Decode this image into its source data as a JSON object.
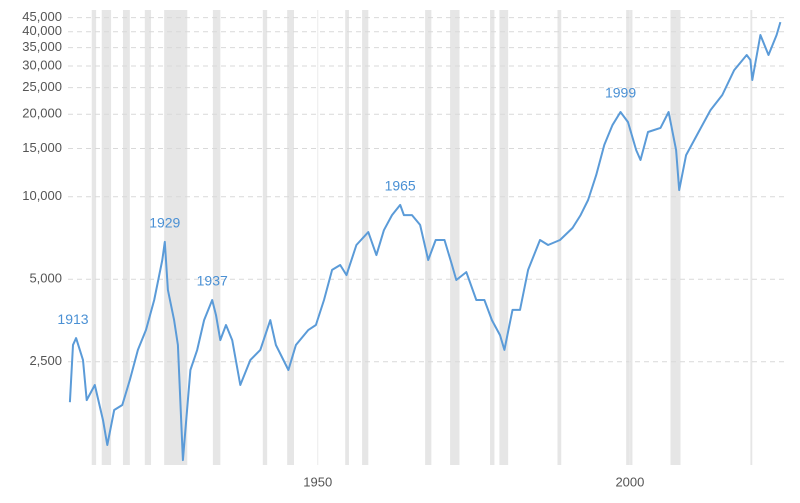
{
  "chart_data": {
    "type": "line",
    "yscale": "log",
    "grid": true,
    "xlim": [
      1910,
      2025
    ],
    "ylim": [
      1050,
      48000
    ],
    "xticks": [
      1950,
      2000
    ],
    "yticks": [
      {
        "value": 2500,
        "label": "2,500"
      },
      {
        "value": 5000,
        "label": "5,000"
      },
      {
        "value": 10000,
        "label": "10,000"
      },
      {
        "value": 15000,
        "label": "15,000"
      },
      {
        "value": 20000,
        "label": "20,000"
      },
      {
        "value": 25000,
        "label": "25,000"
      },
      {
        "value": 30000,
        "label": "30,000"
      },
      {
        "value": 35000,
        "label": "35,000"
      },
      {
        "value": 40000,
        "label": "40,000"
      },
      {
        "value": 45000,
        "label": "45,000"
      }
    ],
    "shaded_color": "#e6e6e6",
    "shaded_ranges": [
      [
        1913.8,
        1914.5
      ],
      [
        1915.4,
        1916.9
      ],
      [
        1918.8,
        1919.9
      ],
      [
        1922.3,
        1923.3
      ],
      [
        1925.4,
        1929.1
      ],
      [
        1933.2,
        1934.4
      ],
      [
        1941.2,
        1941.9
      ],
      [
        1945.1,
        1946.2
      ],
      [
        1954.4,
        1955.0
      ],
      [
        1957.1,
        1958.1
      ],
      [
        1967.2,
        1968.2
      ],
      [
        1971.2,
        1972.7
      ],
      [
        1977.6,
        1978.3
      ],
      [
        1979.1,
        1980.5
      ],
      [
        1988.4,
        1989.0
      ],
      [
        1999.4,
        2000.4
      ],
      [
        2006.5,
        2008.1
      ],
      [
        2019.3,
        2019.6
      ]
    ],
    "series": [
      {
        "color": "#5b9bd8",
        "x": [
          1910.3,
          1910.8,
          1911.3,
          1912.4,
          1913.0,
          1914.3,
          1915.6,
          1916.3,
          1917.4,
          1918.7,
          1919.9,
          1921.2,
          1922.5,
          1923.8,
          1925.1,
          1925.5,
          1926.0,
          1927.0,
          1927.6,
          1928.4,
          1928.8,
          1929.6,
          1930.7,
          1931.8,
          1933.1,
          1933.7,
          1934.4,
          1935.3,
          1936.3,
          1937.6,
          1939.2,
          1940.8,
          1942.4,
          1943.3,
          1945.3,
          1946.5,
          1948.5,
          1949.7,
          1951.0,
          1952.3,
          1953.6,
          1954.6,
          1956.2,
          1958.1,
          1959.4,
          1960.6,
          1961.9,
          1963.2,
          1963.8,
          1965.1,
          1966.4,
          1967.7,
          1968.9,
          1970.3,
          1971.5,
          1972.2,
          1973.8,
          1975.4,
          1976.7,
          1977.9,
          1979.2,
          1979.9,
          1981.2,
          1982.4,
          1983.7,
          1985.6,
          1986.9,
          1988.8,
          1990.8,
          1992.1,
          1993.3,
          1994.6,
          1995.9,
          1997.2,
          1998.5,
          1999.7,
          2001.0,
          2001.7,
          2002.9,
          2004.9,
          2006.2,
          2007.4,
          2007.9,
          2009.0,
          2011.0,
          2012.9,
          2014.8,
          2016.7,
          2018.7,
          2019.3,
          2019.6,
          2020.9,
          2022.2,
          2023.5,
          2024.1
        ],
        "values": [
          1780,
          2880,
          3050,
          2535,
          1811,
          2056,
          1531,
          1242,
          1667,
          1738,
          2143,
          2761,
          3266,
          4198,
          5875,
          6839,
          4571,
          3548,
          2877,
          1094,
          1409,
          2333,
          2761,
          3548,
          4198,
          3698,
          2999,
          3404,
          2999,
          2056,
          2535,
          2761,
          3548,
          2877,
          2333,
          2877,
          3266,
          3404,
          4198,
          5408,
          5636,
          5176,
          6668,
          7430,
          6124,
          7551,
          8570,
          9333,
          8570,
          8570,
          7889,
          5875,
          6950,
          6950,
          5636,
          4966,
          5309,
          4198,
          4198,
          3548,
          3126,
          2761,
          3864,
          3864,
          5408,
          6950,
          6668,
          6950,
          7691,
          8570,
          9727,
          11995,
          15450,
          18240,
          20370,
          18710,
          14790,
          13610,
          17220,
          17820,
          20370,
          14790,
          10570,
          14190,
          17220,
          20700,
          23500,
          28970,
          32890,
          31550,
          26670,
          38900,
          32890,
          38900,
          43350
        ]
      }
    ],
    "annotations": [
      {
        "text": "1913",
        "x": 1910.8,
        "y": 3050
      },
      {
        "text": "1929",
        "x": 1925.5,
        "y": 6839
      },
      {
        "text": "1937",
        "x": 1933.1,
        "y": 4198
      },
      {
        "text": "1965",
        "x": 1963.2,
        "y": 9333
      },
      {
        "text": "1999",
        "x": 1998.5,
        "y": 20370
      }
    ]
  }
}
